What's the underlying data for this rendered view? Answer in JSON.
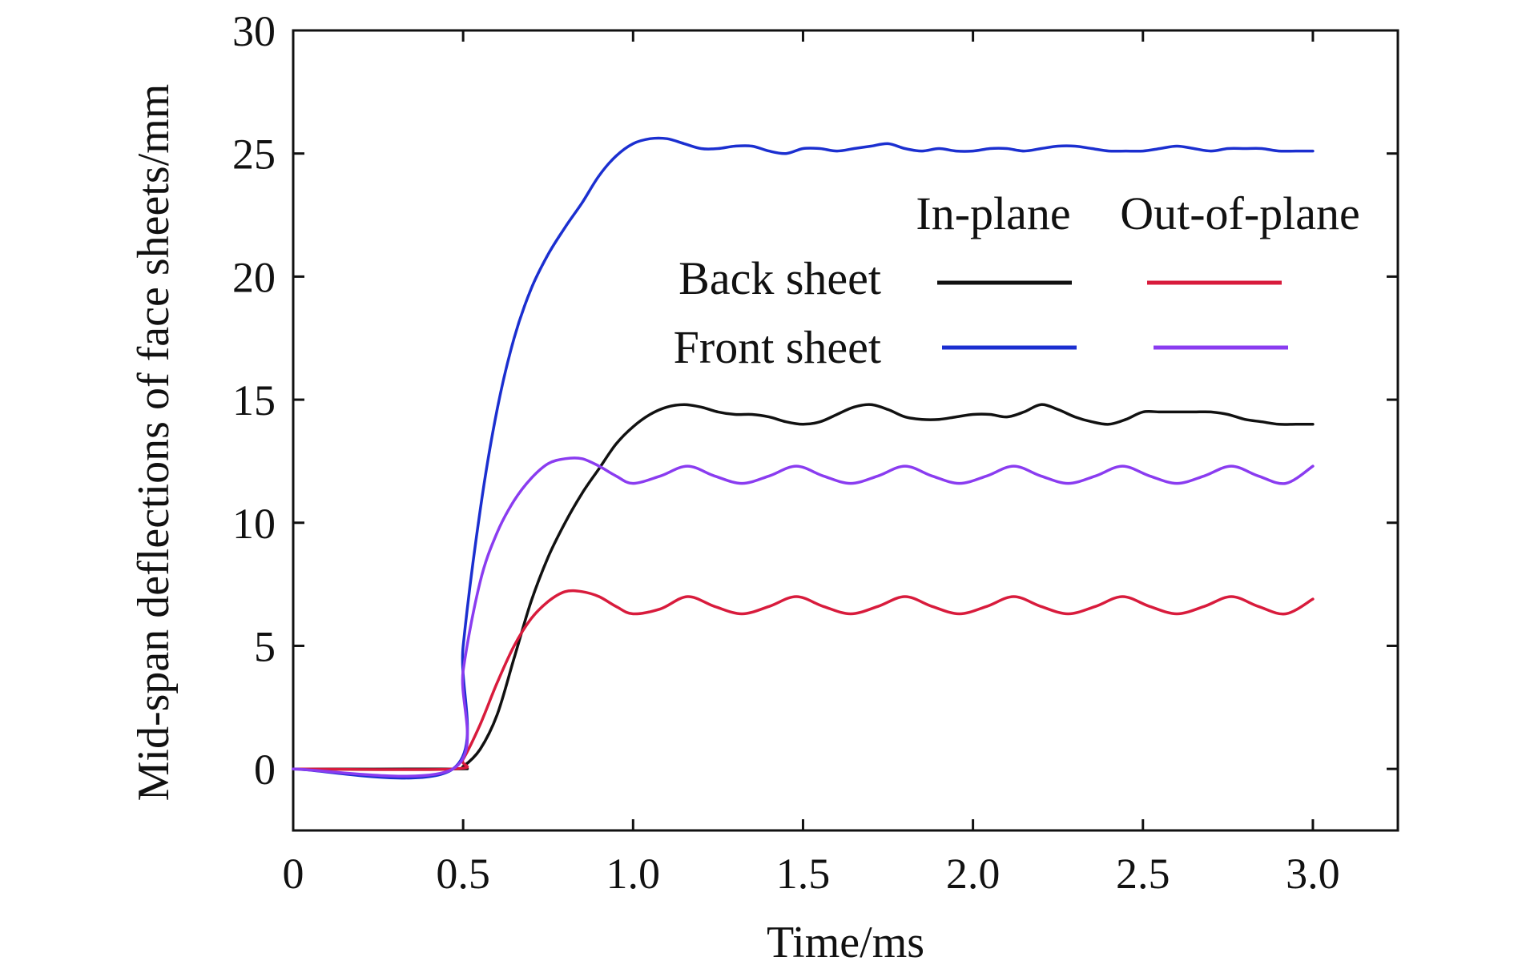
{
  "chart_data": {
    "type": "line",
    "title": "",
    "xlabel": "Time/ms",
    "ylabel": "Mid-span deflections of face sheets/mm",
    "xlim": [
      0,
      3.25
    ],
    "ylim": [
      -2.5,
      30
    ],
    "xticks": [
      "0",
      "0.5",
      "1.0",
      "1.5",
      "2.0",
      "2.5",
      "3.0"
    ],
    "xtick_values": [
      0,
      0.5,
      1.0,
      1.5,
      2.0,
      2.5,
      3.0
    ],
    "yticks": [
      "0",
      "5",
      "10",
      "15",
      "20",
      "25",
      "30"
    ],
    "ytick_values": [
      0,
      5,
      10,
      15,
      20,
      25,
      30
    ],
    "grid": false,
    "legend": {
      "placement": "right",
      "column_headers": [
        "In-plane",
        "Out-of-plane"
      ],
      "row_labels": [
        "Back sheet",
        "Front sheet"
      ]
    },
    "series": [
      {
        "legend_row": "Back sheet",
        "legend_col": "In-plane",
        "color": "#111111",
        "x": [
          0,
          0.47,
          0.5,
          0.55,
          0.6,
          0.65,
          0.7,
          0.75,
          0.8,
          0.85,
          0.9,
          0.95,
          1.0,
          1.05,
          1.1,
          1.15,
          1.2,
          1.25,
          1.3,
          1.35,
          1.4,
          1.45,
          1.5,
          1.55,
          1.6,
          1.65,
          1.7,
          1.75,
          1.8,
          1.85,
          1.9,
          1.95,
          2.0,
          2.05,
          2.1,
          2.15,
          2.2,
          2.25,
          2.3,
          2.35,
          2.4,
          2.45,
          2.5,
          2.55,
          2.6,
          2.65,
          2.7,
          2.75,
          2.8,
          2.85,
          2.9,
          2.95,
          3.0
        ],
        "values": [
          0,
          0,
          0.1,
          0.8,
          2.2,
          4.5,
          6.8,
          8.6,
          10.0,
          11.2,
          12.2,
          13.2,
          13.9,
          14.4,
          14.7,
          14.8,
          14.7,
          14.5,
          14.4,
          14.4,
          14.3,
          14.1,
          14.0,
          14.1,
          14.4,
          14.7,
          14.8,
          14.6,
          14.3,
          14.2,
          14.2,
          14.3,
          14.4,
          14.4,
          14.3,
          14.5,
          14.8,
          14.6,
          14.3,
          14.1,
          14.0,
          14.2,
          14.5,
          14.5,
          14.5,
          14.5,
          14.5,
          14.4,
          14.2,
          14.1,
          14.0,
          14.0,
          14.0
        ]
      },
      {
        "legend_row": "Back sheet",
        "legend_col": "Out-of-plane",
        "color": "#d81b3c",
        "x": [
          0,
          0.47,
          0.5,
          0.55,
          0.6,
          0.65,
          0.7,
          0.75,
          0.8,
          0.85,
          0.9,
          0.95,
          1.0,
          1.08,
          1.16,
          1.24,
          1.32,
          1.4,
          1.48,
          1.56,
          1.64,
          1.72,
          1.8,
          1.88,
          1.96,
          2.04,
          2.12,
          2.2,
          2.28,
          2.36,
          2.44,
          2.52,
          2.6,
          2.68,
          2.76,
          2.84,
          2.92,
          3.0
        ],
        "values": [
          0,
          0,
          0.4,
          1.8,
          3.5,
          5.0,
          6.1,
          6.8,
          7.2,
          7.2,
          7.0,
          6.6,
          6.3,
          6.5,
          7.0,
          6.6,
          6.3,
          6.6,
          7.0,
          6.6,
          6.3,
          6.6,
          7.0,
          6.6,
          6.3,
          6.6,
          7.0,
          6.6,
          6.3,
          6.6,
          7.0,
          6.6,
          6.3,
          6.6,
          7.0,
          6.6,
          6.3,
          6.9
        ]
      },
      {
        "legend_row": "Front sheet",
        "legend_col": "In-plane",
        "color": "#1b2fd0",
        "x": [
          0,
          0.47,
          0.5,
          0.55,
          0.6,
          0.65,
          0.7,
          0.75,
          0.8,
          0.85,
          0.9,
          0.95,
          1.0,
          1.05,
          1.1,
          1.15,
          1.2,
          1.25,
          1.3,
          1.35,
          1.4,
          1.45,
          1.5,
          1.55,
          1.6,
          1.65,
          1.7,
          1.75,
          1.8,
          1.85,
          1.9,
          1.95,
          2.0,
          2.05,
          2.1,
          2.15,
          2.2,
          2.25,
          2.3,
          2.35,
          2.4,
          2.45,
          2.5,
          2.55,
          2.6,
          2.65,
          2.7,
          2.75,
          2.8,
          2.85,
          2.9,
          2.95,
          3.0
        ],
        "values": [
          0,
          0,
          5.0,
          10.5,
          14.6,
          17.5,
          19.5,
          20.9,
          22.0,
          23.0,
          24.1,
          24.9,
          25.4,
          25.6,
          25.6,
          25.4,
          25.2,
          25.2,
          25.3,
          25.3,
          25.1,
          25.0,
          25.2,
          25.2,
          25.1,
          25.2,
          25.3,
          25.4,
          25.2,
          25.1,
          25.2,
          25.1,
          25.1,
          25.2,
          25.2,
          25.1,
          25.2,
          25.3,
          25.3,
          25.2,
          25.1,
          25.1,
          25.1,
          25.2,
          25.3,
          25.2,
          25.1,
          25.2,
          25.2,
          25.2,
          25.1,
          25.1,
          25.1
        ]
      },
      {
        "legend_row": "Front sheet",
        "legend_col": "Out-of-plane",
        "color": "#8a3cf0",
        "x": [
          0,
          0.47,
          0.5,
          0.55,
          0.6,
          0.65,
          0.7,
          0.75,
          0.8,
          0.85,
          0.9,
          0.95,
          1.0,
          1.08,
          1.16,
          1.24,
          1.32,
          1.4,
          1.48,
          1.56,
          1.64,
          1.72,
          1.8,
          1.88,
          1.96,
          2.04,
          2.12,
          2.2,
          2.28,
          2.36,
          2.44,
          2.52,
          2.6,
          2.68,
          2.76,
          2.84,
          2.92,
          3.0
        ],
        "values": [
          0,
          0,
          4.0,
          7.6,
          9.6,
          10.9,
          11.8,
          12.4,
          12.6,
          12.6,
          12.3,
          11.9,
          11.6,
          11.9,
          12.3,
          11.9,
          11.6,
          11.9,
          12.3,
          11.9,
          11.6,
          11.9,
          12.3,
          11.9,
          11.6,
          11.9,
          12.3,
          11.9,
          11.6,
          11.9,
          12.3,
          11.9,
          11.6,
          11.9,
          12.3,
          11.9,
          11.6,
          12.3
        ]
      }
    ]
  }
}
